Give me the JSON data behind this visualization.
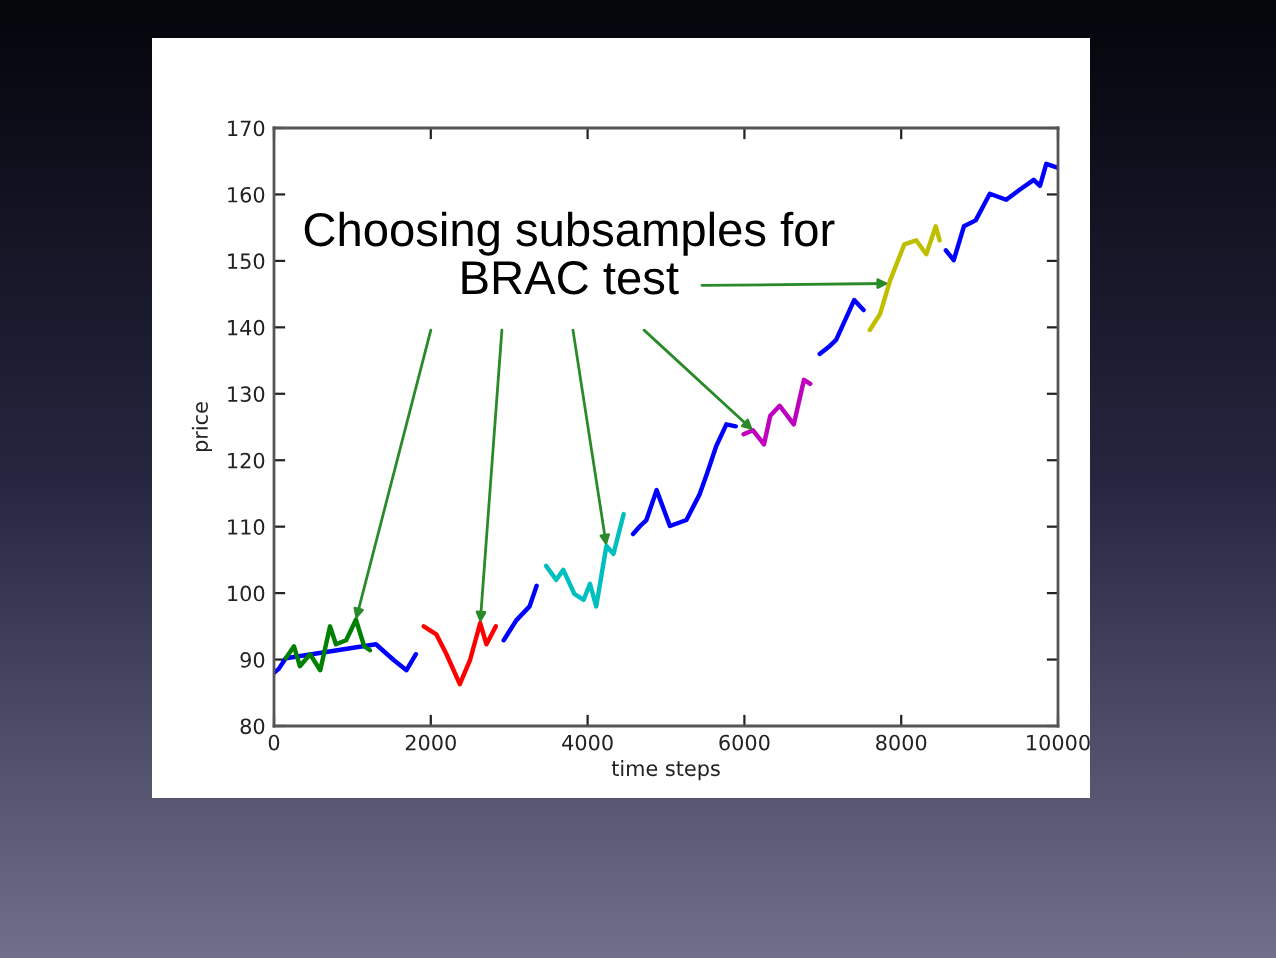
{
  "chart_data": {
    "type": "line",
    "xlabel": "time steps",
    "ylabel": "price",
    "xlim": [
      0,
      10000
    ],
    "ylim": [
      80,
      170
    ],
    "xticks": [
      0,
      2000,
      4000,
      6000,
      8000,
      10000
    ],
    "yticks": [
      80,
      90,
      100,
      110,
      120,
      130,
      140,
      150,
      160,
      170
    ],
    "annotations": [
      {
        "text": "Choosing subsamples for\nBRAC test",
        "x": 7840,
        "y": 146.6
      }
    ],
    "series": [
      {
        "color": "#0000ff",
        "x": [
          0,
          60,
          150,
          1300,
          1530,
          1690,
          1810,
          1910,
          2930,
          3090,
          3260,
          3350,
          3470,
          4580,
          4670,
          4750,
          4880,
          5050,
          5260,
          5430,
          5520,
          5640,
          5770,
          5890,
          5990,
          6960,
          7090,
          7170,
          7400,
          7520,
          7600,
          8570,
          8670,
          8800,
          8950,
          9130,
          9340,
          9510,
          9690,
          9770,
          9850,
          10000
        ],
        "values": [
          88.0,
          88.6,
          90.2,
          92.3,
          89.9,
          88.4,
          90.8,
          null,
          92.9,
          95.9,
          98.0,
          101.1,
          null,
          108.9,
          110.1,
          111.0,
          115.5,
          110.1,
          111.0,
          114.9,
          117.9,
          122.1,
          125.4,
          125.1,
          null,
          136.0,
          137.2,
          138.1,
          144.1,
          142.6,
          null,
          151.6,
          150.1,
          155.2,
          156.1,
          160.1,
          159.2,
          160.7,
          162.2,
          161.3,
          164.6,
          164.0
        ]
      },
      {
        "color": "#008000",
        "x": [
          150,
          255,
          330,
          460,
          590,
          715,
          790,
          920,
          1045,
          1150,
          1225
        ],
        "values": [
          90.2,
          92.0,
          89.0,
          90.8,
          88.4,
          95.0,
          92.3,
          92.9,
          96.0,
          92.0,
          91.4
        ]
      },
      {
        "color": "#ff0000",
        "x": [
          1910,
          2070,
          2200,
          2370,
          2500,
          2630,
          2710,
          2830
        ],
        "values": [
          95.0,
          93.8,
          90.8,
          86.3,
          89.9,
          95.5,
          92.3,
          95.0
        ]
      },
      {
        "color": "#00bfbf",
        "x": [
          3470,
          3600,
          3690,
          3830,
          3950,
          4030,
          4110,
          4240,
          4330,
          4460
        ],
        "values": [
          104.1,
          102.0,
          103.5,
          99.9,
          99.0,
          101.4,
          98.0,
          107.1,
          105.9,
          111.9
        ]
      },
      {
        "color": "#bf00bf",
        "x": [
          5990,
          6110,
          6250,
          6330,
          6450,
          6630,
          6760,
          6840
        ],
        "values": [
          123.9,
          124.5,
          122.4,
          126.7,
          128.2,
          125.4,
          132.1,
          131.5
        ]
      },
      {
        "color": "#bfbf00",
        "x": [
          7600,
          7730,
          7860,
          8040,
          8190,
          8320,
          8440,
          8490
        ],
        "values": [
          139.6,
          142.0,
          147.1,
          152.5,
          153.1,
          151.0,
          155.2,
          153.1
        ]
      }
    ]
  }
}
